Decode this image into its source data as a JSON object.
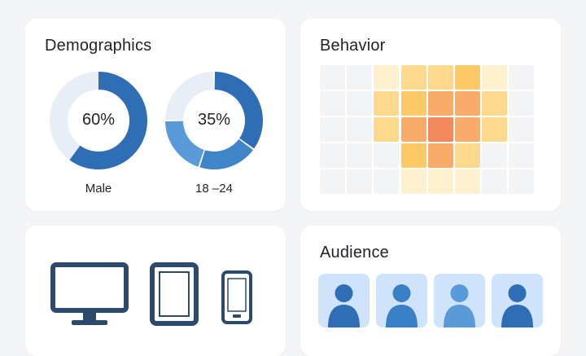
{
  "demographics": {
    "title": "Demographics",
    "gender": {
      "label": "Male",
      "value_text": "60%",
      "percent": 60
    },
    "age": {
      "label": "18 –24",
      "value_text": "35%",
      "segments": [
        35,
        20,
        20,
        25
      ]
    }
  },
  "behavior": {
    "title": "Behavior",
    "heatmap": [
      [
        0,
        0,
        1,
        2,
        2,
        3,
        1,
        0
      ],
      [
        0,
        0,
        2,
        3,
        4,
        4,
        2,
        0
      ],
      [
        0,
        0,
        2,
        4,
        5,
        4,
        2,
        0
      ],
      [
        0,
        0,
        0,
        3,
        4,
        2,
        0,
        0
      ],
      [
        0,
        0,
        0,
        1,
        1,
        1,
        0,
        0
      ]
    ],
    "scale_colors": [
      "#f3f4f6",
      "#fdf0cf",
      "#fdd98e",
      "#fcc967",
      "#f9ab6a",
      "#f2895c"
    ]
  },
  "devices": {
    "items": [
      {
        "name": "desktop",
        "icon": "monitor-icon"
      },
      {
        "name": "tablet",
        "icon": "tablet-icon"
      },
      {
        "name": "mobile",
        "icon": "smartphone-icon"
      }
    ]
  },
  "audience": {
    "title": "Audience",
    "avatars": [
      {
        "icon": "person-icon",
        "color": "#2f6db4"
      },
      {
        "icon": "person-icon",
        "color": "#3a80c6"
      },
      {
        "icon": "person-icon",
        "color": "#5b9ad8"
      },
      {
        "icon": "person-icon",
        "color": "#2f6db4"
      }
    ]
  },
  "colors": {
    "primary": "#2f6db4",
    "track": "#e8eef6",
    "device": "#2c4a6b"
  }
}
